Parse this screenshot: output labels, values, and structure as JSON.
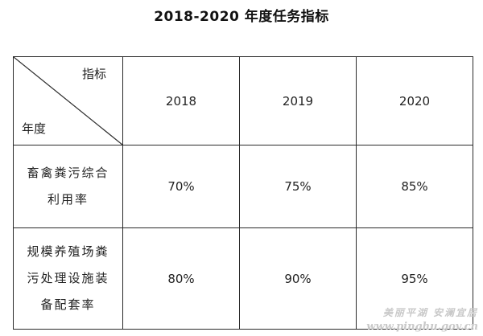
{
  "title": "2018-2020 年度任务指标",
  "table": {
    "corner_top": "指标",
    "corner_bottom": "年度",
    "years": [
      "2018",
      "2019",
      "2020"
    ],
    "rows": [
      {
        "label_lines": [
          "畜禽粪污综合",
          "利用率"
        ],
        "values": [
          "70%",
          "75%",
          "85%"
        ]
      },
      {
        "label_lines": [
          "规模养殖场粪",
          "污处理设施装",
          "备配套率"
        ],
        "values": [
          "80%",
          "90%",
          "95%"
        ]
      }
    ]
  },
  "watermark": {
    "line1": "美丽平湖 安澜宜居",
    "line2": "www.pinghu.gov.cn"
  }
}
